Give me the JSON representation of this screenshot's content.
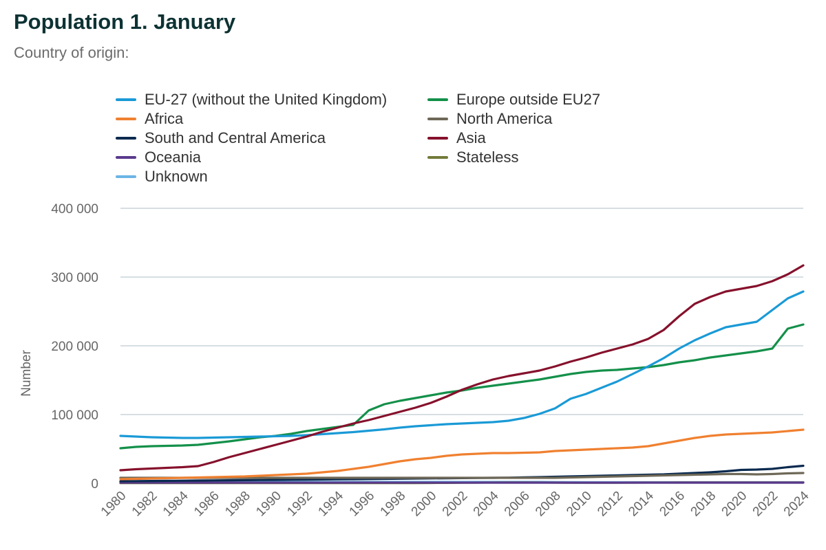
{
  "title": "Population 1. January",
  "subtitle": "Country of origin:",
  "chart_data": {
    "type": "line",
    "title": "Population 1. January",
    "subtitle": "Country of origin:",
    "xlabel": "",
    "ylabel": "Number",
    "ylim": [
      0,
      400000
    ],
    "yticks": [
      0,
      100000,
      200000,
      300000,
      400000
    ],
    "ytick_labels": [
      "0",
      "100 000",
      "200 000",
      "300 000",
      "400 000"
    ],
    "xticks": [
      1980,
      1982,
      1984,
      1986,
      1988,
      1990,
      1992,
      1994,
      1996,
      1998,
      2000,
      2002,
      2004,
      2006,
      2008,
      2010,
      2012,
      2014,
      2016,
      2018,
      2020,
      2022,
      2024
    ],
    "grid": true,
    "legend_position": "top",
    "x": [
      1980,
      1981,
      1982,
      1983,
      1984,
      1985,
      1986,
      1987,
      1988,
      1989,
      1990,
      1991,
      1992,
      1993,
      1994,
      1995,
      1996,
      1997,
      1998,
      1999,
      2000,
      2001,
      2002,
      2003,
      2004,
      2005,
      2006,
      2007,
      2008,
      2009,
      2010,
      2011,
      2012,
      2013,
      2014,
      2015,
      2016,
      2017,
      2018,
      2019,
      2020,
      2021,
      2022,
      2023,
      2024
    ],
    "series": [
      {
        "name": "EU-27 (without the United Kingdom)",
        "color": "#1a9ad6",
        "values": [
          69000,
          68000,
          67000,
          66500,
          66000,
          66000,
          66500,
          67000,
          67500,
          68000,
          68500,
          69000,
          70000,
          71500,
          73000,
          74500,
          76500,
          78500,
          81000,
          83000,
          84500,
          86000,
          87000,
          88000,
          89000,
          91000,
          95000,
          101000,
          109000,
          123000,
          130000,
          139000,
          148000,
          159000,
          170000,
          182000,
          196000,
          208000,
          218000,
          227000,
          231000,
          235000,
          252000,
          269000,
          279000
        ]
      },
      {
        "name": "Europe outside EU27",
        "color": "#14904a",
        "values": [
          51000,
          53000,
          54000,
          54500,
          55000,
          56000,
          58500,
          61000,
          64000,
          67000,
          69000,
          72000,
          76000,
          79000,
          82000,
          85000,
          106000,
          115000,
          120000,
          124000,
          128000,
          132000,
          135000,
          139000,
          142000,
          145000,
          148000,
          151000,
          155000,
          159000,
          162000,
          164000,
          165000,
          167000,
          169000,
          172000,
          176000,
          179000,
          183000,
          186000,
          189000,
          192000,
          196000,
          225000,
          231000
        ]
      },
      {
        "name": "Africa",
        "color": "#f08030",
        "values": [
          6000,
          6500,
          7000,
          7500,
          8000,
          8500,
          9000,
          9500,
          10000,
          11000,
          12000,
          13000,
          14000,
          16000,
          18000,
          21000,
          24000,
          28000,
          32000,
          35000,
          37000,
          40000,
          42000,
          43000,
          44000,
          44000,
          44500,
          45000,
          47000,
          48000,
          49000,
          50000,
          51000,
          52000,
          54000,
          58000,
          62000,
          66000,
          69000,
          71000,
          72000,
          73000,
          74000,
          76000,
          78000
        ]
      },
      {
        "name": "North America",
        "color": "#6e6857",
        "values": [
          8000,
          8000,
          8000,
          8000,
          8000,
          8000,
          8000,
          8000,
          8000,
          8000,
          8000,
          8000,
          8000,
          8000,
          8000,
          8000,
          8000,
          8000,
          8000,
          8000,
          8000,
          8000,
          8000,
          8000,
          8000,
          8000,
          8000,
          8000,
          8000,
          8500,
          9000,
          9500,
          10000,
          10500,
          11000,
          11500,
          12000,
          12500,
          13000,
          13500,
          13500,
          13000,
          13500,
          14500,
          15000
        ]
      },
      {
        "name": "South and Central America",
        "color": "#0a2a4f",
        "values": [
          3000,
          3200,
          3400,
          3600,
          3800,
          4000,
          4200,
          4400,
          4600,
          4800,
          5000,
          5200,
          5400,
          5600,
          5800,
          6000,
          6200,
          6500,
          6700,
          7000,
          7200,
          7400,
          7600,
          7800,
          8000,
          8200,
          8600,
          9000,
          9500,
          10000,
          10500,
          11000,
          11500,
          12000,
          12500,
          13000,
          14000,
          15000,
          16000,
          17500,
          19500,
          20000,
          21000,
          23500,
          25500
        ]
      },
      {
        "name": "Asia",
        "color": "#86112c",
        "values": [
          19000,
          20500,
          21500,
          22500,
          23500,
          25000,
          31000,
          38000,
          44000,
          50000,
          56000,
          62000,
          68000,
          75000,
          81000,
          87000,
          92000,
          98000,
          104000,
          110000,
          117000,
          126000,
          136000,
          144000,
          151000,
          156000,
          160000,
          164000,
          170000,
          177000,
          183000,
          190000,
          196000,
          202000,
          210000,
          223000,
          243000,
          261000,
          271000,
          279000,
          283000,
          287000,
          294000,
          304000,
          317000
        ]
      },
      {
        "name": "Oceania",
        "color": "#5a3a8c",
        "values": [
          1000,
          1000,
          1000,
          1000,
          1000,
          1000,
          1000,
          1000,
          1000,
          1000,
          1000,
          1000,
          1000,
          1000,
          1000,
          1000,
          1000,
          1000,
          1000,
          1000,
          1000,
          1000,
          1000,
          1000,
          1000,
          1000,
          1000,
          1000,
          1000,
          1000,
          1000,
          1000,
          1000,
          1000,
          1000,
          1000,
          1000,
          1000,
          1000,
          1000,
          1000,
          1000,
          1000,
          1000,
          1000
        ]
      },
      {
        "name": "Stateless",
        "color": "#737a3a",
        "values": [
          300,
          300,
          300,
          300,
          300,
          300,
          300,
          300,
          300,
          300,
          300,
          300,
          300,
          300,
          300,
          300,
          300,
          300,
          300,
          400,
          500,
          600,
          800,
          1000,
          1200,
          1300,
          1300,
          1200,
          1000,
          900,
          900,
          900,
          900,
          1000,
          1100,
          1200,
          1300,
          1300,
          1300,
          1300,
          1300,
          1300,
          1300,
          1300,
          1300
        ]
      },
      {
        "name": "Unknown",
        "color": "#6cb4e4",
        "values": [
          2000,
          2000,
          2000,
          2000,
          2000,
          2000,
          2000,
          2000,
          2000,
          2000,
          2000,
          2000,
          2000,
          2000,
          2000,
          2000,
          2000,
          2000,
          2000,
          2000,
          2000,
          2000,
          2000,
          2000,
          2000,
          2000,
          2000,
          2000,
          1800,
          1600,
          1500,
          1500,
          1500,
          1500,
          1500,
          1500,
          1500,
          1500,
          1500,
          1500,
          1500,
          1500,
          1500,
          1500,
          1500
        ]
      }
    ]
  }
}
